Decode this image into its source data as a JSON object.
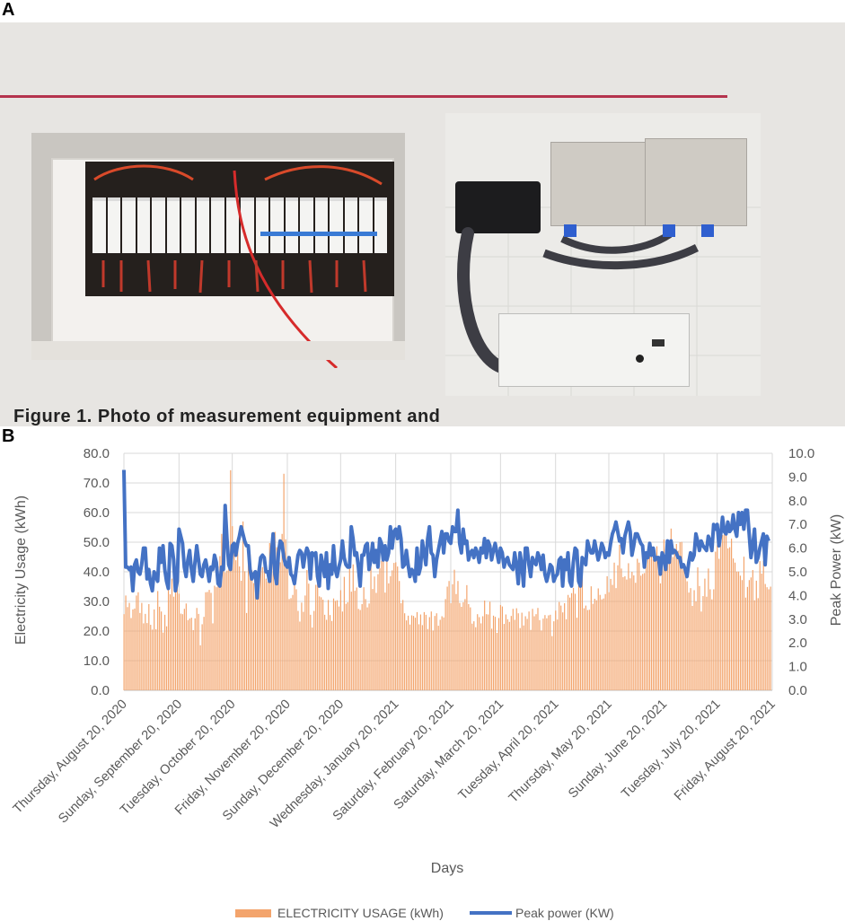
{
  "panel_a": {
    "letter": "A",
    "caption_fragment": "Figure 1. Photo of measurement equipment and"
  },
  "panel_b": {
    "letter": "B"
  },
  "colors": {
    "bars": "#f3a46c",
    "line": "#4472c4",
    "grid": "#d9d9d9",
    "rule": "#b5334d"
  },
  "chart_data": {
    "type": "bar",
    "xlabel": "Days",
    "ylabel": "Electricity Usage (kWh)",
    "y2label": "Peak Power (kW)",
    "ylim": [
      0,
      80
    ],
    "y2lim": [
      0,
      10
    ],
    "yticks": [
      "0.0",
      "10.0",
      "20.0",
      "30.0",
      "40.0",
      "50.0",
      "60.0",
      "70.0",
      "80.0"
    ],
    "y2ticks": [
      "0.0",
      "1.0",
      "2.0",
      "3.0",
      "4.0",
      "5.0",
      "6.0",
      "7.0",
      "8.0",
      "9.0",
      "10.0"
    ],
    "grid": true,
    "legend_position": "bottom",
    "xticks": [
      {
        "day": 0,
        "label": "Thursday, August 20, 2020"
      },
      {
        "day": 31,
        "label": "Sunday, September 20, 2020"
      },
      {
        "day": 61,
        "label": "Tuesday, October 20, 2020"
      },
      {
        "day": 92,
        "label": "Friday, November 20, 2020"
      },
      {
        "day": 122,
        "label": "Sunday, December 20, 2020"
      },
      {
        "day": 153,
        "label": "Wednesday, January 20, 2021"
      },
      {
        "day": 184,
        "label": "Saturday, February 20, 2021"
      },
      {
        "day": 212,
        "label": "Saturday, March 20, 2021"
      },
      {
        "day": 243,
        "label": "Tuesday, April 20, 2021"
      },
      {
        "day": 273,
        "label": "Thursday, May 20, 2021"
      },
      {
        "day": 304,
        "label": "Sunday, June 20, 2021"
      },
      {
        "day": 334,
        "label": "Tuesday, July 20, 2021"
      },
      {
        "day": 365,
        "label": "Friday, August 20, 2021"
      }
    ],
    "series": [
      {
        "name": "ELECTRICITY USAGE (kWh)",
        "axis": "left",
        "kind": "bar",
        "values": [
          25.7,
          32,
          28.1,
          29.5,
          24.4,
          27.3,
          27.6,
          32,
          33.1,
          26.1,
          29.5,
          22.6,
          25.8,
          22.7,
          29.1,
          22.1,
          20.5,
          27.3,
          20.6,
          33.5,
          28.2,
          26.6,
          19.5,
          25.5,
          21.6,
          38.5,
          32.4,
          37.7,
          31.6,
          33,
          41.6,
          32.6,
          25.9,
          25.7,
          27.5,
          29.3,
          23.7,
          24.2,
          24.5,
          20.3,
          24.3,
          27.8,
          25.8,
          15.2,
          22.3,
          24.8,
          33.1,
          33.2,
          33.9,
          32.9,
          22.6,
          35.3,
          34.8,
          41.8,
          45.3,
          52.8,
          45.5,
          39.8,
          40.4,
          45.2,
          74.3,
          55.4,
          49.1,
          43.9,
          47.3,
          41.8,
          37,
          57,
          40.2,
          26.1,
          46.8,
          45.9,
          40.5,
          36.2,
          40.3,
          38.4,
          37.5,
          42.1,
          41.6,
          44.2,
          37.7,
          36.7,
          49.7,
          48.7,
          50,
          53.5,
          48.3,
          47.8,
          43.2,
          52.8,
          73.1,
          51,
          45,
          30.8,
          31.1,
          32.2,
          38.1,
          34.1,
          26.8,
          23.2,
          29.6,
          26.5,
          32,
          40.6,
          36,
          25.5,
          21.2,
          26.8,
          35.6,
          36.5,
          31.7,
          31.4,
          30.6,
          25.5,
          23.8,
          30.5,
          25.4,
          23.4,
          31,
          30.2,
          30.4,
          28.3,
          33.8,
          26.6,
          38.3,
          29.2,
          29.7,
          41,
          33.3,
          42.5,
          33.6,
          34.7,
          27.5,
          27.1,
          29.1,
          34.8,
          30.8,
          28,
          29.3,
          43,
          34.2,
          38.4,
          32.9,
          39.2,
          41.2,
          43.7,
          48.5,
          33,
          47.6,
          36.1,
          38.5,
          40.5,
          43,
          43.2,
          41.8,
          36.9,
          29.4,
          30.5,
          26,
          23.6,
          25.2,
          22.2,
          25.3,
          25.1,
          24.5,
          26.4,
          22.3,
          25.6,
          22,
          26.4,
          25.5,
          20.7,
          24.7,
          26.6,
          20.2,
          25.1,
          26,
          21.8,
          23.8,
          25,
          24.6,
          30.8,
          35,
          36.9,
          29.4,
          35.8,
          40.7,
          32.5,
          36.9,
          29.5,
          28.2,
          29.7,
          30.8,
          35.5,
          29.1,
          28,
          22.5,
          23.3,
          21.3,
          25.7,
          24.7,
          22.6,
          25,
          30.3,
          25.7,
          25.6,
          29.9,
          20.8,
          25.2,
          24.8,
          19.4,
          24.4,
          28.8,
          28.3,
          22.4,
          25.6,
          24,
          23.1,
          25.1,
          27.5,
          23.8,
          27.7,
          26,
          21,
          26.2,
          21.9,
          25,
          24.1,
          26.6,
          20.4,
          27.5,
          25,
          25.7,
          27.8,
          23.7,
          20.2,
          24.2,
          25.4,
          24.3,
          25.3,
          25.5,
          18.3,
          23.3,
          26.9,
          23.9,
          29.8,
          28.6,
          26.3,
          29.4,
          24,
          32.2,
          31.3,
          32.8,
          34.6,
          32.6,
          24.5,
          35.5,
          34.8,
          38.8,
          27.7,
          28.6,
          27.1,
          27.2,
          35.1,
          29.2,
          30.9,
          30.4,
          34.4,
          32.2,
          30.7,
          31,
          32.5,
          38.5,
          33.1,
          37.6,
          35.6,
          43.1,
          34.5,
          42.2,
          49.1,
          41.1,
          38.2,
          38.5,
          37.4,
          42.9,
          37.8,
          40,
          38.8,
          36.3,
          44.4,
          43.1,
          38.7,
          39.3,
          39.6,
          46.2,
          45.3,
          48.2,
          48.6,
          44.2,
          47.4,
          48.6,
          41.8,
          36.1,
          45.9,
          50.9,
          43.9,
          47.9,
          47.2,
          54.6,
          45,
          47.5,
          49.4,
          47.1,
          50,
          50.1,
          40.8,
          40.2,
          36.8,
          33,
          34.5,
          28.5,
          33.8,
          30,
          41.5,
          35.2,
          26.6,
          31.8,
          37.7,
          31.6,
          41.1,
          34.1,
          30.7,
          34.1,
          46.8,
          48.9,
          44.4,
          54.5,
          52.4,
          53.2,
          54.9,
          47.9,
          48.3,
          51.2,
          44.5,
          43.1,
          40.1,
          40.1,
          38.7,
          37.2,
          45.1,
          31.3,
          34.9,
          37.2,
          38.1,
          40.6,
          30.4,
          37,
          31.1,
          43.6,
          39.4,
          43.7,
          35.9,
          34.8,
          34.1,
          35
        ]
      },
      {
        "name": "Peak power (KW)",
        "axis": "right",
        "kind": "line",
        "values": [
          9.3,
          5.2,
          5.2,
          5.1,
          5.2,
          4.2,
          5.3,
          5.5,
          5,
          4.9,
          5.3,
          6,
          6,
          4.7,
          5.1,
          4.5,
          4.2,
          5,
          4.8,
          4.6,
          6,
          5.4,
          6.1,
          5.1,
          4.6,
          4.3,
          6.2,
          6.1,
          5.5,
          4.2,
          4.6,
          6.8,
          6.5,
          6.2,
          5.2,
          4.8,
          5.5,
          5.9,
          5.1,
          4.6,
          5.4,
          6.1,
          5.5,
          4.9,
          4.8,
          5.3,
          5.5,
          5.1,
          4.6,
          5.2,
          5.1,
          5.7,
          5.4,
          4.5,
          4.4,
          5.2,
          5.1,
          7.8,
          6.4,
          5.3,
          5.1,
          6.1,
          6.2,
          5.7,
          6.2,
          6.5,
          6.9,
          6.6,
          6.3,
          6.1,
          6.1,
          5.1,
          4.7,
          4.9,
          5,
          3.9,
          5,
          5.6,
          5.7,
          5.6,
          5,
          5,
          4.6,
          5.7,
          6.6,
          4.9,
          4.5,
          5.8,
          6.3,
          6.2,
          5.6,
          5.3,
          5.2,
          5.6,
          4.9,
          4.8,
          4.5,
          5.1,
          5.7,
          5.9,
          5.8,
          5.2,
          5.7,
          6,
          5.8,
          4.7,
          5.8,
          5.7,
          5.8,
          4.8,
          4.4,
          5.7,
          5.3,
          4.8,
          5.8,
          4.3,
          5.3,
          4.9,
          6.1,
          5.1,
          4.8,
          5.2,
          5.5,
          6.3,
          5.6,
          5.3,
          5.2,
          5.2,
          6.9,
          6.4,
          5.7,
          5.8,
          5.2,
          4.4,
          5.7,
          5.7,
          6.1,
          6.2,
          5.1,
          5.5,
          6.2,
          5.4,
          5.9,
          5.2,
          6.4,
          6.2,
          5.5,
          6.1,
          5.5,
          5.8,
          6.9,
          6,
          6.7,
          6.8,
          6.4,
          6.9,
          6.4,
          5.2,
          5.3,
          5.9,
          5.3,
          4.8,
          5.1,
          5,
          4.6,
          6,
          4.9,
          5.2,
          6.3,
          5.8,
          5.3,
          6.4,
          6.9,
          5.8,
          5.7,
          4.8,
          5.5,
          5.9,
          6.3,
          6.7,
          5.8,
          6.6,
          6.6,
          6.3,
          6.2,
          6.9,
          6.7,
          6.7,
          7.6,
          6.2,
          5.8,
          6.8,
          6.2,
          6.3,
          5.5,
          5.8,
          5.9,
          5.6,
          6,
          5.8,
          5.4,
          6,
          5.8,
          6.4,
          5.6,
          6.3,
          6.1,
          5.5,
          5.9,
          6.2,
          5.8,
          5.4,
          6,
          5.8,
          5.2,
          5.5,
          5.6,
          5.3,
          5.2,
          5.1,
          5.8,
          5.3,
          4.5,
          5.8,
          5.3,
          4.4,
          6,
          6,
          5.3,
          4.8,
          5.6,
          5.4,
          5.3,
          5.8,
          5.6,
          5.1,
          5.7,
          4.9,
          4.6,
          4.9,
          5.3,
          5.2,
          4.6,
          4.8,
          4.9,
          5.5,
          5.6,
          4.4,
          5.5,
          5.1,
          5.8,
          4.6,
          4.4,
          5.4,
          6,
          5.9,
          4.6,
          4.4,
          5.6,
          5.5,
          5.3,
          6.3,
          6,
          5.8,
          5.8,
          6.3,
          5.9,
          5.5,
          5.8,
          6.2,
          6,
          5.6,
          5.8,
          5.7,
          6.2,
          6.6,
          6.8,
          7.1,
          6.7,
          6.3,
          6.4,
          5.8,
          6.5,
          6.8,
          7.1,
          6.7,
          5.7,
          6.1,
          6.6,
          6.6,
          6.4,
          6.2,
          6.1,
          5.2,
          5.8,
          5.6,
          6.2,
          5.7,
          6,
          5.5,
          5.6,
          5.6,
          4.9,
          5.8,
          5.6,
          5.1,
          6.3,
          5.4,
          6.3,
          5.8,
          5.9,
          5.8,
          5.6,
          5.6,
          5.2,
          5.3,
          5.1,
          4.8,
          5.4,
          5.8,
          5.5,
          5.7,
          6.6,
          6.3,
          5.9,
          6.3,
          6.1,
          6,
          5.9,
          6.5,
          6.3,
          5.9,
          7,
          6.8,
          7,
          6.1,
          6.6,
          7.3,
          6.7,
          6.6,
          7.1,
          6.7,
          6.8,
          7.4,
          6.8,
          6.5,
          7.5,
          7,
          7.5,
          6.8,
          7.6,
          7.6,
          6.6,
          5.6,
          6.1,
          6.8,
          5.4,
          5.6,
          6,
          6.3,
          6.6,
          5.3,
          6.5,
          6.3
        ]
      }
    ]
  }
}
